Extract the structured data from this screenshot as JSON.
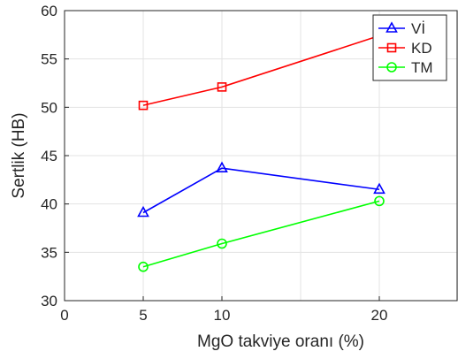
{
  "chart_data": {
    "type": "line",
    "title": "",
    "xlabel": "MgO takviye oranı (%)",
    "ylabel": "Sertlik (HB)",
    "xlim": [
      0,
      25
    ],
    "ylim": [
      30,
      60
    ],
    "xticks": [
      0,
      5,
      10,
      20
    ],
    "yticks": [
      30,
      35,
      40,
      45,
      50,
      55,
      60
    ],
    "grid": true,
    "legend_position": "top-right",
    "series": [
      {
        "name": "Vİ",
        "color": "#0000ff",
        "marker": "triangle",
        "x": [
          5,
          10,
          20
        ],
        "y": [
          39.1,
          43.7,
          41.5
        ]
      },
      {
        "name": "KD",
        "color": "#ff0000",
        "marker": "square",
        "x": [
          5,
          10,
          20
        ],
        "y": [
          50.2,
          52.1,
          57.4
        ]
      },
      {
        "name": "TM",
        "color": "#00ff00",
        "marker": "circle",
        "x": [
          5,
          10,
          20
        ],
        "y": [
          33.5,
          35.9,
          40.3
        ]
      }
    ]
  }
}
